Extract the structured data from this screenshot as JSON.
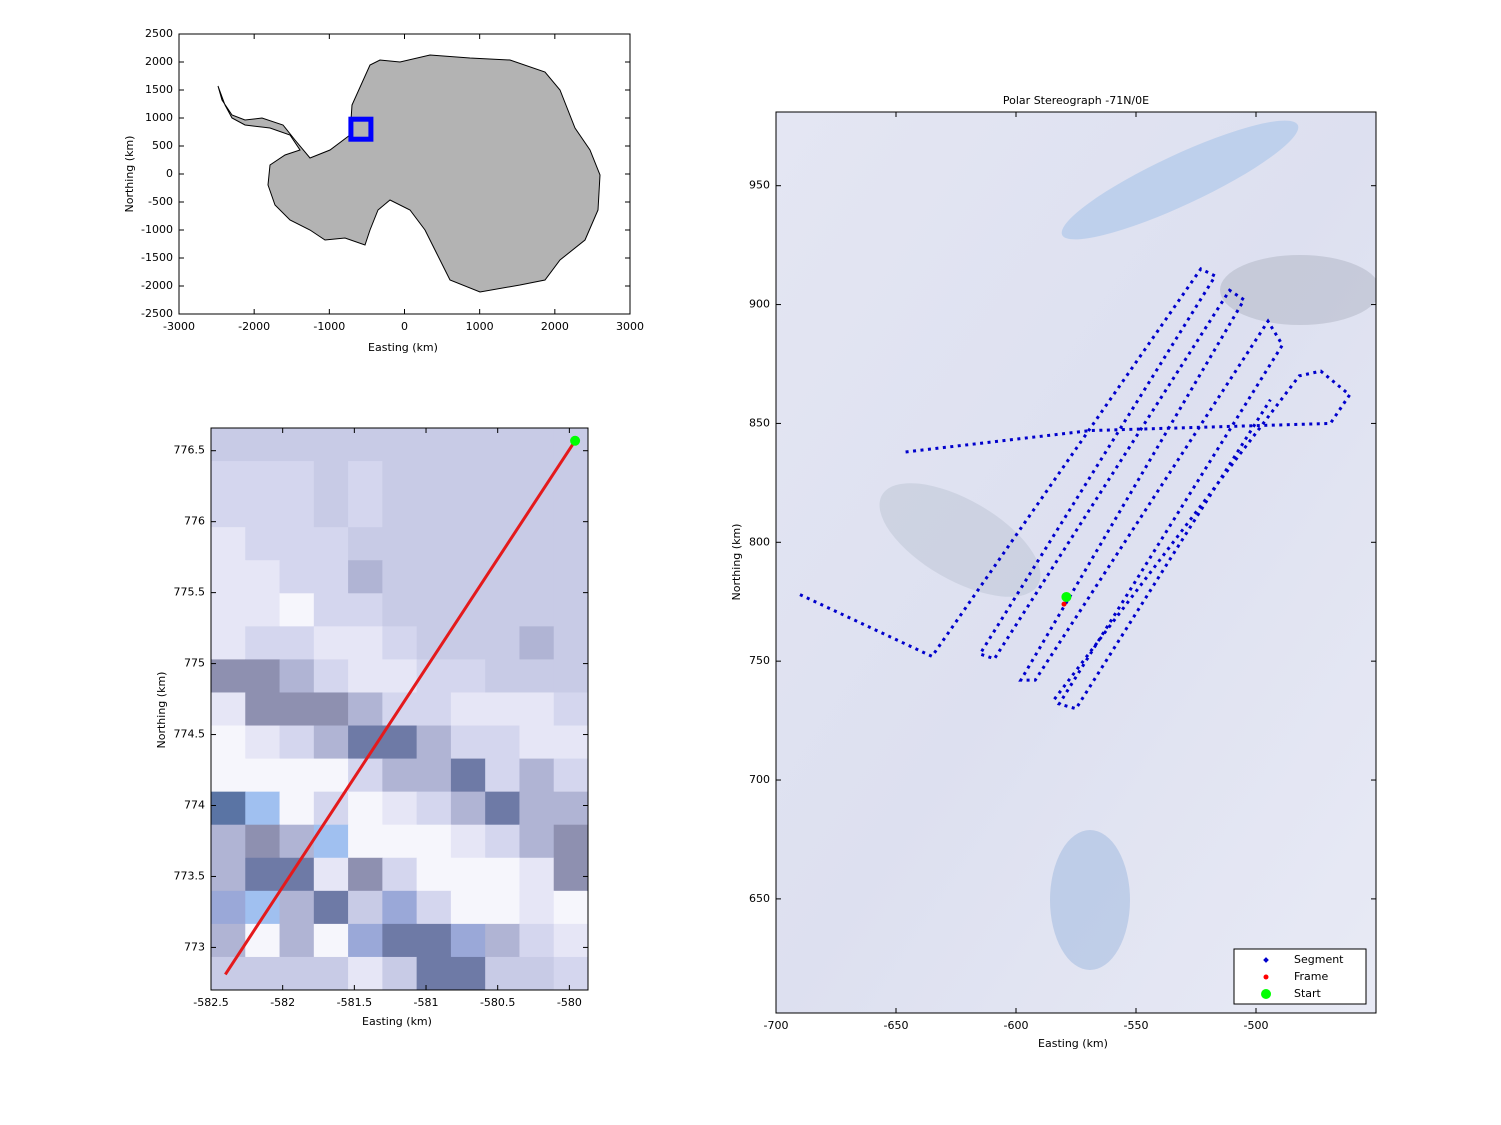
{
  "chart_data": [
    {
      "type": "map",
      "xlabel": "Easting (km)",
      "ylabel": "Northing (km)",
      "xlim": [
        -3000,
        3000
      ],
      "ylim": [
        -2500,
        2500
      ],
      "xticks": [
        -3000,
        -2000,
        -1000,
        0,
        1000,
        2000,
        3000
      ],
      "yticks": [
        -2500,
        -2000,
        -1500,
        -1000,
        -500,
        0,
        500,
        1000,
        1500,
        2000,
        2500
      ],
      "series": [
        {
          "x": [
            -580
          ],
          "values": [
            800
          ],
          "color": "#0000ff",
          "marker": "square"
        }
      ]
    },
    {
      "type": "line",
      "xlabel": "Easting (km)",
      "ylabel": "Northing (km)",
      "xlim": [
        -582.5,
        -579.87
      ],
      "ylim": [
        772.7,
        776.66
      ],
      "xticks": [
        -582.5,
        -582,
        -581.5,
        -581,
        -580.5,
        -580
      ],
      "yticks": [
        773,
        773.5,
        774,
        774.5,
        775,
        775.5,
        776,
        776.5
      ],
      "series": [
        {
          "x": [
            -582.4,
            -579.96
          ],
          "values": [
            772.81,
            776.57
          ],
          "color": "#e41a1c",
          "line_style": "solid"
        },
        {
          "x": [
            -579.96
          ],
          "values": [
            776.57
          ],
          "color": "#00ff00",
          "marker": "dot"
        }
      ]
    },
    {
      "type": "line",
      "title": "Polar Stereograph -71N/0E",
      "xlabel": "Easting (km)",
      "ylabel": "Northing (km)",
      "xlim": [
        -700,
        -450
      ],
      "ylim": [
        602,
        981
      ],
      "xticks": [
        -700,
        -650,
        -600,
        -550,
        -500
      ],
      "yticks": [
        650,
        700,
        750,
        800,
        850,
        900,
        950
      ],
      "legend": "lower right",
      "series": [
        {
          "name": "Segment",
          "color": "#0000cc",
          "line_style": "dotted",
          "x": [
            -690,
            -635,
            -523,
            -517,
            -615,
            -609,
            -511,
            -505,
            -598,
            -592,
            -495,
            -489,
            -582,
            -575,
            -494,
            null,
            -646,
            -569,
            -469,
            -461,
            -473,
            -482,
            -584
          ],
          "values": [
            778,
            752,
            915,
            912,
            753,
            751,
            906,
            902,
            742,
            742,
            893,
            883,
            732,
            730,
            860,
            null,
            838,
            847,
            850,
            862,
            872,
            870,
            734
          ]
        },
        {
          "name": "Frame",
          "color": "#ff0000",
          "marker": "small",
          "x": [
            -580
          ],
          "values": [
            774
          ]
        },
        {
          "name": "Start",
          "color": "#00ff00",
          "marker": "dot",
          "x": [
            -579
          ],
          "values": [
            777
          ]
        }
      ]
    }
  ]
}
